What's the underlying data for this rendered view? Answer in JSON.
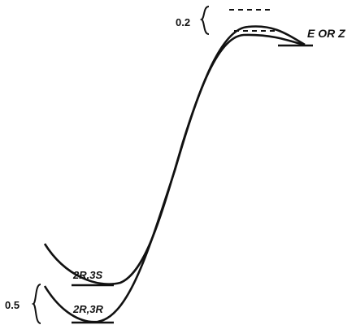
{
  "diagram": {
    "labels": {
      "top_barrier_diff": "0.2",
      "bottom_well_diff": "0.5",
      "upper_minimum": "2R,3S",
      "lower_minimum": "2R,3R",
      "product": "E OR Z"
    },
    "curves": [
      {
        "name": "upper-energy-curve",
        "connects": [
          "2R,3S",
          "E OR Z"
        ]
      },
      {
        "name": "lower-energy-curve",
        "connects": [
          "2R,3R",
          "E OR Z"
        ]
      }
    ],
    "colors": {
      "ink": "#111111",
      "background": "#ffffff"
    }
  }
}
